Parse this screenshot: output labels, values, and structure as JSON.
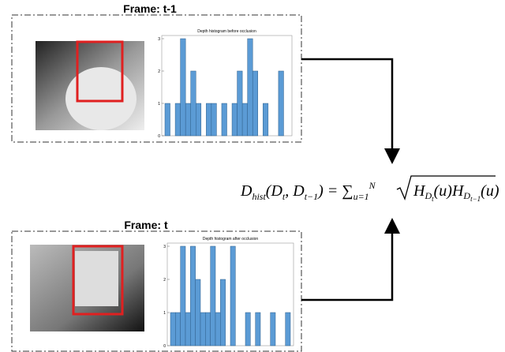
{
  "frames": [
    {
      "label": "Frame: t-1",
      "histogram": {
        "type": "bar",
        "title": "Depth histogram before occlusion",
        "color": "#5b9bd5",
        "values": [
          1,
          0,
          1,
          3,
          1,
          2,
          1,
          0,
          1,
          1,
          0,
          1,
          0,
          1,
          2,
          1,
          3,
          2,
          0,
          1,
          0,
          0,
          2,
          0
        ],
        "ylim": [
          0,
          3
        ],
        "yticks": [
          0,
          1,
          2,
          3
        ]
      }
    },
    {
      "label": "Frame: t",
      "histogram": {
        "type": "bar",
        "title": "Depth histogram after occlusion",
        "color": "#5b9bd5",
        "values": [
          1,
          1,
          3,
          1,
          3,
          2,
          1,
          1,
          3,
          1,
          2,
          0,
          3,
          0,
          0,
          1,
          0,
          1,
          0,
          0,
          1,
          0,
          0,
          1
        ],
        "ylim": [
          0,
          3
        ],
        "yticks": [
          0,
          1,
          2,
          3
        ]
      }
    }
  ],
  "formula": {
    "lhs": [
      "D",
      "hist",
      "(D",
      "t",
      ", D",
      "t−1",
      ") = ∑",
      "u=1",
      "N"
    ],
    "root": [
      "H",
      "D",
      "t",
      "(u)H",
      "D",
      "t−1",
      "(u)"
    ]
  }
}
